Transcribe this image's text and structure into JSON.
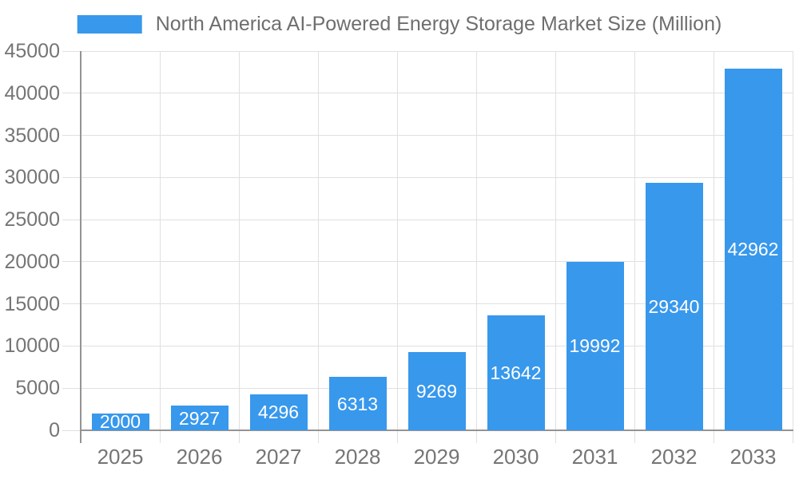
{
  "legend": {
    "label": "North America AI-Powered Energy Storage Market Size (Million)"
  },
  "colors": {
    "bar": "#3898ec",
    "grid": "#e0e0e0",
    "axis": "#949494",
    "tick_text": "#757575",
    "legend_text": "#6e6e6e",
    "bar_label_text": "#ffffff"
  },
  "chart_data": {
    "type": "bar",
    "title": "North America AI-Powered Energy Storage Market Size (Million)",
    "categories": [
      "2025",
      "2026",
      "2027",
      "2028",
      "2029",
      "2030",
      "2031",
      "2032",
      "2033"
    ],
    "values": [
      2000,
      2927,
      4296,
      6313,
      9269,
      13642,
      19992,
      29340,
      42962
    ],
    "series_name": "North America AI-Powered Energy Storage Market Size (Million)",
    "xlabel": "",
    "ylabel": "",
    "ylim": [
      0,
      45000
    ],
    "ytick_step": 5000,
    "grid": true,
    "legend_position": "top",
    "value_labels": "inside-center"
  }
}
